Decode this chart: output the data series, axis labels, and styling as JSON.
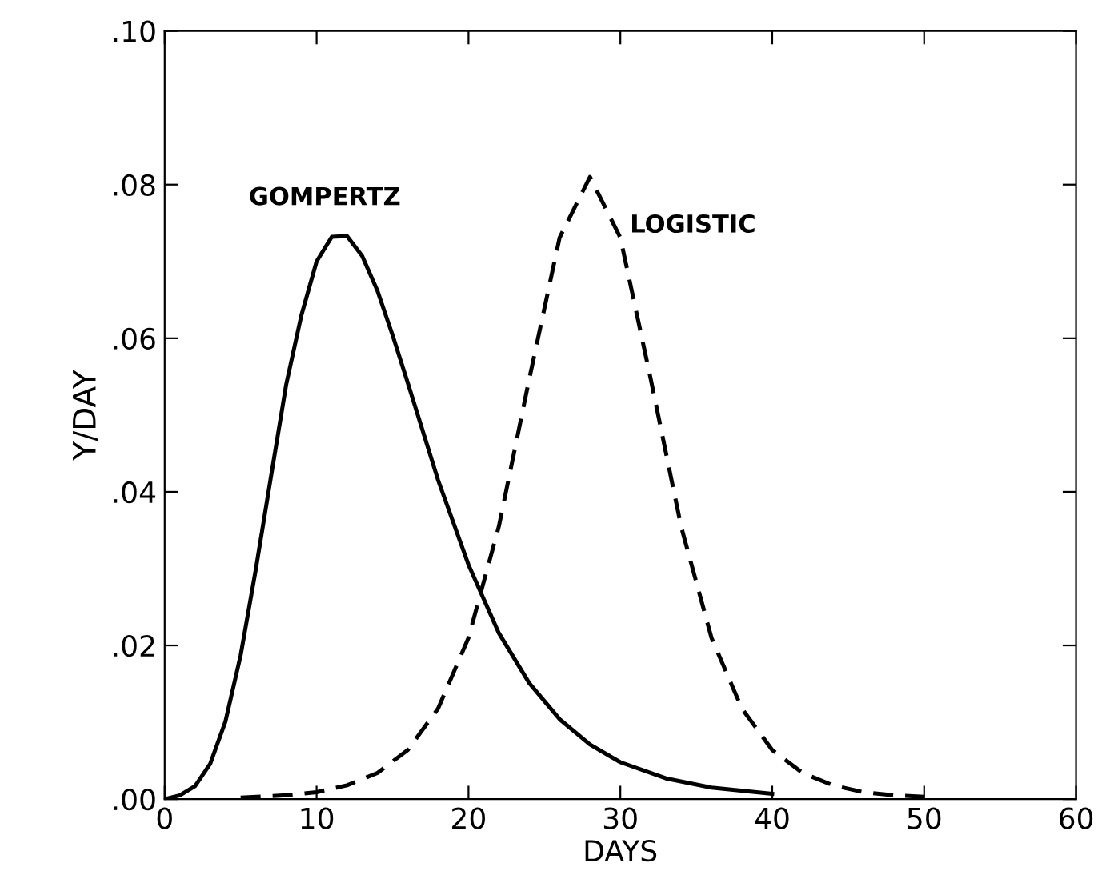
{
  "chart_data": {
    "type": "line",
    "xlabel": "DAYS",
    "ylabel": "Y/DAY",
    "xlim": [
      0,
      60
    ],
    "xticks": [
      0,
      10,
      20,
      30,
      40,
      50,
      60
    ],
    "ylim": [
      0,
      0.1
    ],
    "yticks": [
      {
        "value": 0,
        "label": ".00"
      },
      {
        "value": 0.02,
        "label": ".02"
      },
      {
        "value": 0.04,
        "label": ".04"
      },
      {
        "value": 0.06,
        "label": ".06"
      },
      {
        "value": 0.08,
        "label": ".08"
      },
      {
        "value": 0.1,
        "label": ".10"
      }
    ],
    "grid": false,
    "legend": false,
    "series": [
      {
        "name": "GOMPERTZ",
        "color": "#000000",
        "line_style": "solid",
        "x": [
          0,
          1,
          2,
          3,
          4,
          5,
          6,
          7,
          8,
          9,
          10,
          11,
          12,
          13,
          14,
          15,
          16,
          18,
          20,
          22,
          24,
          26,
          28,
          30,
          33,
          36,
          40
        ],
        "values": [
          0,
          0.0005,
          0.0017,
          0.0046,
          0.0101,
          0.0187,
          0.0299,
          0.042,
          0.054,
          0.063,
          0.07,
          0.0732,
          0.0733,
          0.0707,
          0.0662,
          0.0604,
          0.0542,
          0.0415,
          0.0305,
          0.0216,
          0.0151,
          0.0104,
          0.0071,
          0.0048,
          0.0027,
          0.0015,
          0.0007
        ]
      },
      {
        "name": "LOGISTIC",
        "color": "#000000",
        "line_style": "dashed",
        "x": [
          5,
          8,
          10,
          12,
          14,
          16,
          18,
          20,
          22,
          24,
          26,
          28,
          30,
          32,
          34,
          36,
          38,
          40,
          42,
          44,
          46,
          48,
          50
        ],
        "values": [
          0.0002,
          0.0005,
          0.0009,
          0.0018,
          0.0034,
          0.0064,
          0.0118,
          0.021,
          0.0355,
          0.0547,
          0.0731,
          0.081,
          0.0731,
          0.0547,
          0.0355,
          0.021,
          0.0118,
          0.0064,
          0.0034,
          0.0018,
          0.0009,
          0.0005,
          0.0003
        ]
      }
    ]
  }
}
